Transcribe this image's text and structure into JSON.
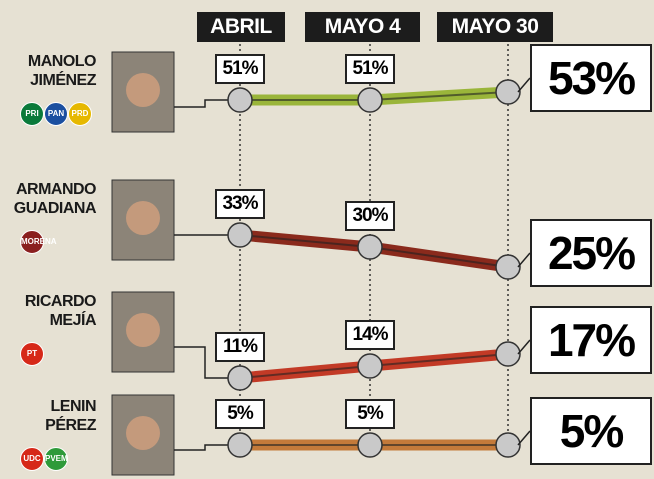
{
  "chart_data": {
    "type": "line",
    "categories": [
      "ABRIL",
      "MAYO 4",
      "MAYO 30"
    ],
    "series": [
      {
        "name": "MANOLO JIMÉNEZ",
        "color": "#9ab53a",
        "values": [
          51,
          51,
          53
        ],
        "value_labels": [
          "51%",
          "51%",
          "53%"
        ],
        "parties": [
          "PRI",
          "PAN",
          "PRD"
        ]
      },
      {
        "name": "ARMANDO GUADIANA",
        "color": "#8a2a1c",
        "values": [
          33,
          30,
          25
        ],
        "value_labels": [
          "33%",
          "30%",
          "25%"
        ],
        "parties": [
          "MORENA"
        ]
      },
      {
        "name": "RICARDO MEJÍA",
        "color": "#c23a26",
        "values": [
          11,
          14,
          17
        ],
        "value_labels": [
          "11%",
          "14%",
          "17%"
        ],
        "parties": [
          "PT"
        ]
      },
      {
        "name": "LENIN PÉREZ",
        "color": "#c47a3a",
        "values": [
          5,
          5,
          5
        ],
        "value_labels": [
          "5%",
          "5%",
          "5%"
        ],
        "parties": [
          "UDC",
          "PVEM"
        ]
      }
    ]
  }
}
